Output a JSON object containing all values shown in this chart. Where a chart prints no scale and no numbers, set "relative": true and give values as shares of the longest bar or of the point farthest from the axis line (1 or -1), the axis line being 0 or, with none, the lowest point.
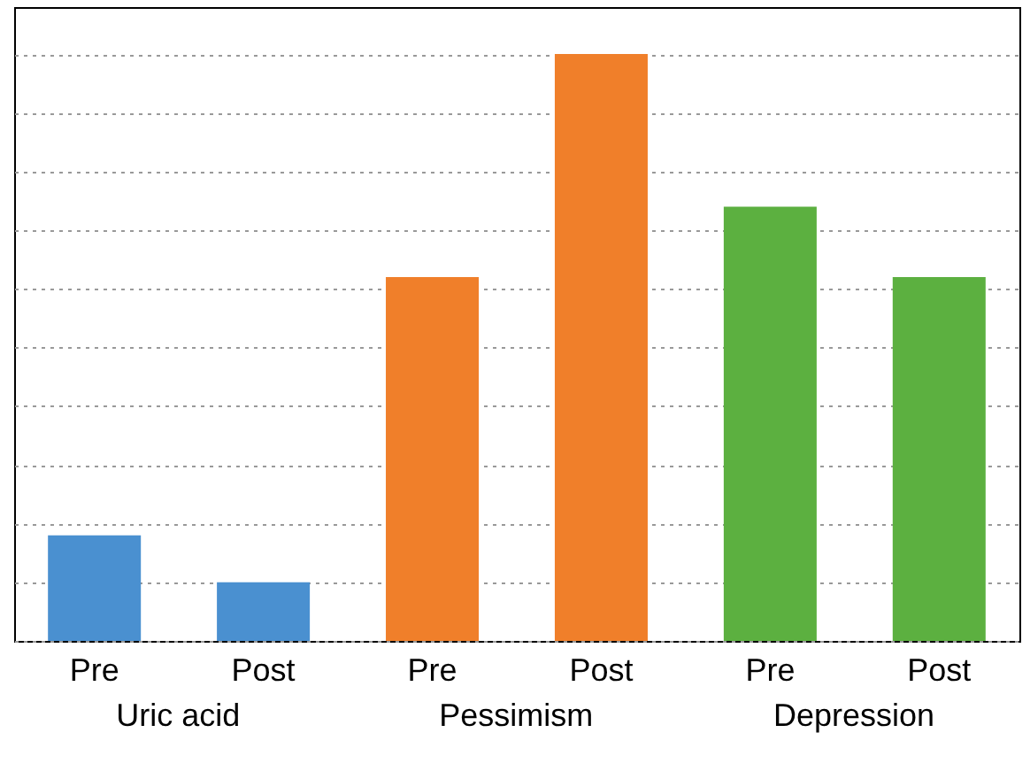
{
  "chart_data": {
    "type": "bar",
    "relative": true,
    "grid": "y",
    "categories": [
      "Pre",
      "Post",
      "Pre",
      "Post",
      "Pre",
      "Post"
    ],
    "series": [
      {
        "name": "Uric acid",
        "color": "#4a90d0",
        "values": [
          0.18,
          0.1,
          null,
          null,
          null,
          null
        ]
      },
      {
        "name": "Pessimism",
        "color": "#f07f2a",
        "values": [
          null,
          null,
          0.62,
          1,
          null,
          null
        ]
      },
      {
        "name": "Depression",
        "color": "#5cb040",
        "values": [
          null,
          null,
          null,
          null,
          0.74,
          0.62
        ]
      }
    ]
  }
}
